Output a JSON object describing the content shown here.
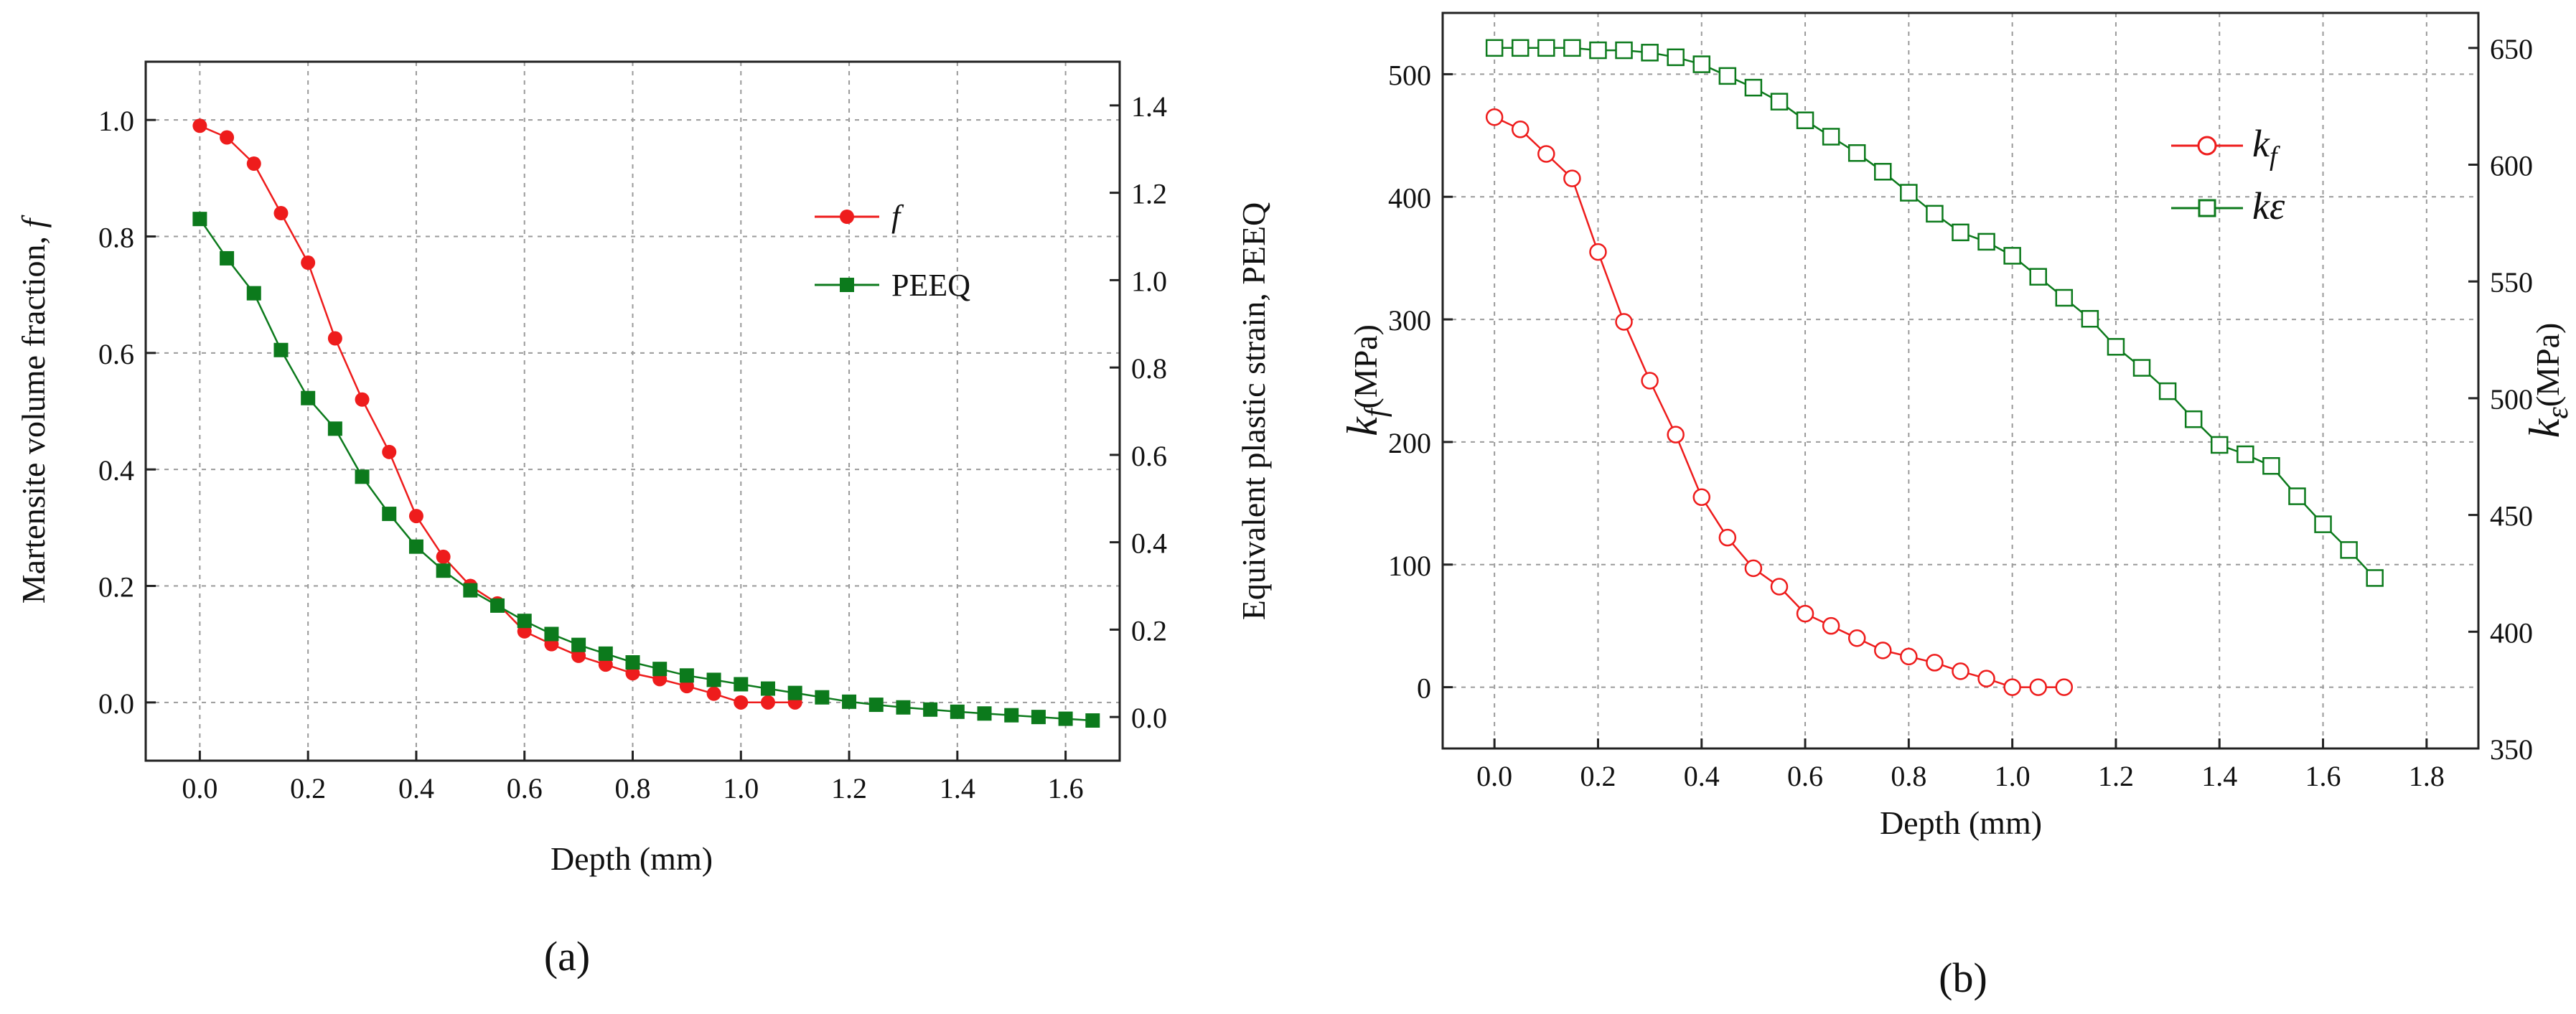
{
  "panel_a": {
    "caption": "(a)",
    "chart_data": {
      "type": "line",
      "title": "",
      "xlabel": "Depth (mm)",
      "ylabel_left": "Martensite volume fraction, f",
      "ylabel_right": "Equivalent plastic strain, PEEQ",
      "xlim": [
        -0.1,
        1.7
      ],
      "ylim_left": [
        -0.1,
        1.1
      ],
      "ylim_right": [
        -0.1,
        1.5
      ],
      "xticks": [
        0.0,
        0.2,
        0.4,
        0.6,
        0.8,
        1.0,
        1.2,
        1.4,
        1.6
      ],
      "yticks_left": [
        0.0,
        0.2,
        0.4,
        0.6,
        0.8,
        1.0
      ],
      "yticks_right": [
        0.0,
        0.2,
        0.4,
        0.6,
        0.8,
        1.0,
        1.2,
        1.4
      ],
      "grid": true,
      "legend_position": "top-right",
      "series": [
        {
          "name": "f",
          "axis": "left",
          "color": "#ee1c1c",
          "marker": "filled-circle",
          "x": [
            0.0,
            0.05,
            0.1,
            0.15,
            0.2,
            0.25,
            0.3,
            0.35,
            0.4,
            0.45,
            0.5,
            0.55,
            0.6,
            0.65,
            0.7,
            0.75,
            0.8,
            0.85,
            0.9,
            0.95,
            1.0,
            1.05,
            1.1
          ],
          "y": [
            0.99,
            0.97,
            0.925,
            0.84,
            0.755,
            0.625,
            0.52,
            0.43,
            0.32,
            0.25,
            0.2,
            0.17,
            0.122,
            0.1,
            0.08,
            0.065,
            0.05,
            0.04,
            0.028,
            0.015,
            0.0,
            0.0,
            0.0
          ]
        },
        {
          "name": "PEEQ",
          "axis": "right",
          "color": "#0c7a1c",
          "marker": "filled-square",
          "x": [
            0.0,
            0.05,
            0.1,
            0.15,
            0.2,
            0.25,
            0.3,
            0.35,
            0.4,
            0.45,
            0.5,
            0.55,
            0.6,
            0.65,
            0.7,
            0.75,
            0.8,
            0.85,
            0.9,
            0.95,
            1.0,
            1.05,
            1.1,
            1.15,
            1.2,
            1.25,
            1.3,
            1.35,
            1.4,
            1.45,
            1.5,
            1.55,
            1.6,
            1.65
          ],
          "y": [
            1.14,
            1.05,
            0.97,
            0.84,
            0.73,
            0.66,
            0.55,
            0.465,
            0.39,
            0.335,
            0.29,
            0.255,
            0.22,
            0.19,
            0.165,
            0.145,
            0.125,
            0.11,
            0.095,
            0.085,
            0.075,
            0.065,
            0.055,
            0.045,
            0.035,
            0.028,
            0.022,
            0.017,
            0.012,
            0.008,
            0.004,
            0.0,
            -0.004,
            -0.008
          ]
        }
      ]
    }
  },
  "panel_b": {
    "caption": "(b)",
    "chart_data": {
      "type": "line",
      "title": "",
      "xlabel": "Depth (mm)",
      "ylabel_left": "kf (MPa)",
      "ylabel_left_symbol": "k",
      "ylabel_left_subscript": "f",
      "ylabel_left_unit": "(MPa)",
      "ylabel_right": "kε (MPa)",
      "ylabel_right_symbol": "k",
      "ylabel_right_subscript": "ε",
      "ylabel_right_unit": "(MPa)",
      "xlim": [
        -0.1,
        1.9
      ],
      "ylim_left": [
        -50,
        550
      ],
      "ylim_right": [
        350,
        665
      ],
      "xticks": [
        0.0,
        0.2,
        0.4,
        0.6,
        0.8,
        1.0,
        1.2,
        1.4,
        1.6,
        1.8
      ],
      "yticks_left": [
        0,
        100,
        200,
        300,
        400,
        500
      ],
      "yticks_right": [
        350,
        400,
        450,
        500,
        550,
        600,
        650
      ],
      "grid": true,
      "legend_position": "top-right",
      "series": [
        {
          "name": "kf",
          "legend_symbol": "k",
          "legend_subscript": "f",
          "axis": "left",
          "color": "#ee1c1c",
          "marker": "open-circle",
          "x": [
            0.0,
            0.05,
            0.1,
            0.15,
            0.2,
            0.25,
            0.3,
            0.35,
            0.4,
            0.45,
            0.5,
            0.55,
            0.6,
            0.65,
            0.7,
            0.75,
            0.8,
            0.85,
            0.9,
            0.95,
            1.0,
            1.05,
            1.1
          ],
          "y": [
            465,
            455,
            435,
            415,
            355,
            298,
            250,
            206,
            155,
            122,
            97,
            82,
            60,
            50,
            40,
            30,
            25,
            20,
            13,
            7,
            0,
            0,
            0
          ]
        },
        {
          "name": "kε",
          "legend_symbol": "kε",
          "legend_subscript": "",
          "axis": "right",
          "color": "#0c7a1c",
          "marker": "open-square",
          "x": [
            0.0,
            0.05,
            0.1,
            0.15,
            0.2,
            0.25,
            0.3,
            0.35,
            0.4,
            0.45,
            0.5,
            0.55,
            0.6,
            0.65,
            0.7,
            0.75,
            0.8,
            0.85,
            0.9,
            0.95,
            1.0,
            1.05,
            1.1,
            1.15,
            1.2,
            1.25,
            1.3,
            1.35,
            1.4,
            1.45,
            1.5,
            1.55,
            1.6,
            1.65,
            1.7
          ],
          "y": [
            650,
            650,
            650,
            650,
            649,
            649,
            648,
            646,
            643,
            638,
            633,
            627,
            619,
            612,
            605,
            597,
            588,
            579,
            571,
            567,
            561,
            552,
            543,
            534,
            522,
            513,
            503,
            491,
            480,
            476,
            471,
            458,
            446,
            435,
            423
          ]
        }
      ]
    }
  }
}
